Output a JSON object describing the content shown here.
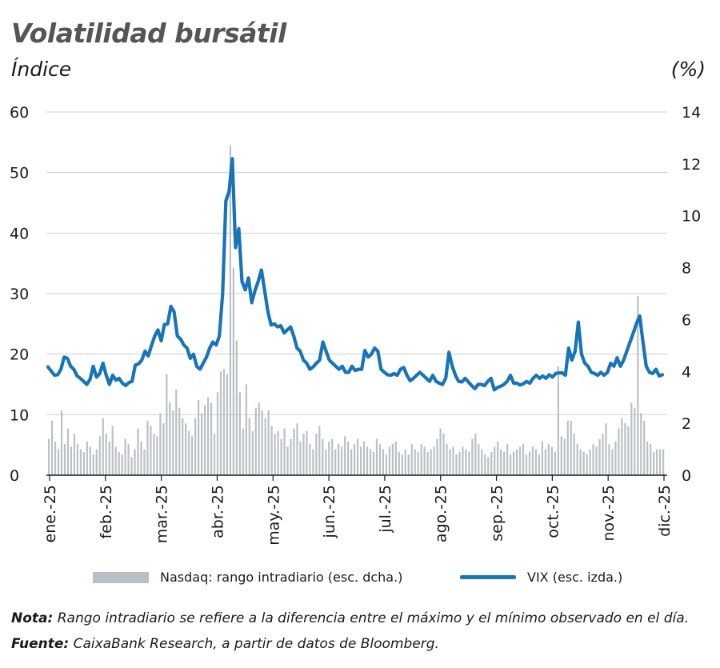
{
  "title": "Volatilidad bursátil",
  "left_unit": "Índice",
  "right_unit": "(%)",
  "legend": {
    "bars": "Nasdaq: rango intradiario (esc. dcha.)",
    "line": "VIX (esc. izda.)"
  },
  "note": {
    "label": "Nota:",
    "text": "Rango intradiario se refiere a la diferencia entre el máximo y el mínimo observado en el día."
  },
  "source": {
    "label": "Fuente:",
    "text": "CaixaBank Research, a partir de datos de Bloomberg."
  },
  "colors": {
    "vix": "#1674b8",
    "bars": "#b9c0c4",
    "grid": "#cfcfcf"
  },
  "chart_data": {
    "type": "bar+line",
    "x_labels": [
      "ene.-25",
      "feb.-25",
      "mar.-25",
      "abr.-25",
      "may.-25",
      "jun.-25",
      "jul.-25",
      "ago.-25",
      "sep.-25",
      "oct.-25",
      "nov.-25",
      "dic.-25"
    ],
    "left_axis": {
      "label": "Índice",
      "range": [
        0,
        60
      ],
      "ticks": [
        "0",
        "10",
        "20",
        "30",
        "40",
        "50",
        "60"
      ]
    },
    "right_axis": {
      "label": "(%)",
      "range": [
        0,
        14
      ],
      "ticks": [
        "0",
        "2",
        "4",
        "6",
        "8",
        "10",
        "12",
        "14"
      ]
    },
    "grid": "horizontal",
    "legend_position": "bottom",
    "series": [
      {
        "name": "VIX (esc. izda.)",
        "type": "line",
        "axis": "left",
        "points": [
          [
            0,
            17.9
          ],
          [
            1,
            17.2
          ],
          [
            2,
            16.5
          ],
          [
            3,
            16.6
          ],
          [
            4,
            17.5
          ],
          [
            5,
            19.5
          ],
          [
            6,
            19.3
          ],
          [
            7,
            18.0
          ],
          [
            8,
            17.5
          ],
          [
            9,
            16.4
          ],
          [
            10,
            16.0
          ],
          [
            11,
            15.5
          ],
          [
            12,
            15.0
          ],
          [
            13,
            15.8
          ],
          [
            14,
            18.0
          ],
          [
            15,
            16.2
          ],
          [
            16,
            16.8
          ],
          [
            17,
            18.5
          ],
          [
            18,
            16.5
          ],
          [
            19,
            15.0
          ],
          [
            20,
            16.5
          ],
          [
            21,
            15.7
          ],
          [
            22,
            16.0
          ],
          [
            23,
            15.2
          ],
          [
            24,
            14.8
          ],
          [
            25,
            15.3
          ],
          [
            26,
            15.5
          ],
          [
            27,
            18.2
          ],
          [
            28,
            18.4
          ],
          [
            29,
            19.0
          ],
          [
            30,
            20.5
          ],
          [
            31,
            19.7
          ],
          [
            32,
            21.4
          ],
          [
            33,
            23.0
          ],
          [
            34,
            24.0
          ],
          [
            35,
            22.2
          ],
          [
            36,
            24.9
          ],
          [
            37,
            25.0
          ],
          [
            38,
            27.9
          ],
          [
            39,
            27.0
          ],
          [
            40,
            23.0
          ],
          [
            41,
            22.5
          ],
          [
            42,
            21.5
          ],
          [
            43,
            21.0
          ],
          [
            44,
            19.3
          ],
          [
            45,
            20.0
          ],
          [
            46,
            18.0
          ],
          [
            47,
            17.5
          ],
          [
            48,
            18.5
          ],
          [
            49,
            19.5
          ],
          [
            50,
            21.0
          ],
          [
            51,
            22.0
          ],
          [
            52,
            21.5
          ],
          [
            53,
            23.0
          ],
          [
            54,
            30.0
          ],
          [
            55,
            45.3
          ],
          [
            56,
            46.9
          ],
          [
            57,
            52.3
          ],
          [
            58,
            37.6
          ],
          [
            59,
            40.7
          ],
          [
            60,
            32.0
          ],
          [
            61,
            30.6
          ],
          [
            62,
            32.6
          ],
          [
            63,
            28.5
          ],
          [
            64,
            30.5
          ],
          [
            65,
            32.0
          ],
          [
            66,
            33.9
          ],
          [
            67,
            30.5
          ],
          [
            68,
            27.0
          ],
          [
            69,
            24.8
          ],
          [
            70,
            25.0
          ],
          [
            71,
            24.5
          ],
          [
            72,
            24.7
          ],
          [
            73,
            23.5
          ],
          [
            74,
            24.0
          ],
          [
            75,
            24.5
          ],
          [
            76,
            23.0
          ],
          [
            77,
            21.0
          ],
          [
            78,
            20.5
          ],
          [
            79,
            19.0
          ],
          [
            80,
            18.5
          ],
          [
            81,
            17.5
          ],
          [
            82,
            17.9
          ],
          [
            83,
            18.5
          ],
          [
            84,
            19.0
          ],
          [
            85,
            22.0
          ],
          [
            86,
            20.5
          ],
          [
            87,
            19.0
          ],
          [
            88,
            18.5
          ],
          [
            89,
            18.0
          ],
          [
            90,
            17.5
          ],
          [
            91,
            18.0
          ],
          [
            92,
            17.0
          ],
          [
            93,
            17.0
          ],
          [
            94,
            18.0
          ],
          [
            95,
            17.3
          ],
          [
            96,
            17.5
          ],
          [
            97,
            17.5
          ],
          [
            98,
            20.6
          ],
          [
            99,
            19.5
          ],
          [
            100,
            20.0
          ],
          [
            101,
            21.0
          ],
          [
            102,
            20.5
          ],
          [
            103,
            17.5
          ],
          [
            104,
            17.0
          ],
          [
            105,
            16.6
          ],
          [
            106,
            16.5
          ],
          [
            107,
            16.8
          ],
          [
            108,
            16.5
          ],
          [
            109,
            17.5
          ],
          [
            110,
            17.8
          ],
          [
            111,
            16.5
          ],
          [
            112,
            15.6
          ],
          [
            113,
            16.0
          ],
          [
            114,
            16.5
          ],
          [
            115,
            17.0
          ],
          [
            116,
            16.5
          ],
          [
            117,
            16.0
          ],
          [
            118,
            15.5
          ],
          [
            119,
            16.5
          ],
          [
            120,
            15.5
          ],
          [
            121,
            15.2
          ],
          [
            122,
            15.0
          ],
          [
            123,
            16.0
          ],
          [
            124,
            20.3
          ],
          [
            125,
            18.0
          ],
          [
            126,
            16.5
          ],
          [
            127,
            15.5
          ],
          [
            128,
            15.4
          ],
          [
            129,
            16.0
          ],
          [
            130,
            15.4
          ],
          [
            131,
            14.8
          ],
          [
            132,
            14.3
          ],
          [
            133,
            15.0
          ],
          [
            134,
            15.0
          ],
          [
            135,
            14.8
          ],
          [
            136,
            15.5
          ],
          [
            137,
            16.0
          ],
          [
            138,
            14.1
          ],
          [
            139,
            14.5
          ],
          [
            140,
            14.7
          ],
          [
            141,
            15.0
          ],
          [
            142,
            15.5
          ],
          [
            143,
            16.5
          ],
          [
            144,
            15.2
          ],
          [
            145,
            15.2
          ],
          [
            146,
            14.9
          ],
          [
            147,
            15.1
          ],
          [
            148,
            15.5
          ],
          [
            149,
            15.2
          ],
          [
            150,
            16.0
          ],
          [
            151,
            16.5
          ],
          [
            152,
            16.0
          ],
          [
            153,
            16.4
          ],
          [
            154,
            16.0
          ],
          [
            155,
            16.6
          ],
          [
            156,
            16.2
          ],
          [
            157,
            16.8
          ],
          [
            158,
            16.9
          ],
          [
            159,
            16.9
          ],
          [
            160,
            16.5
          ],
          [
            161,
            21.0
          ],
          [
            162,
            19.0
          ],
          [
            163,
            20.5
          ],
          [
            164,
            25.3
          ],
          [
            165,
            20.0
          ],
          [
            166,
            18.5
          ],
          [
            167,
            18.0
          ],
          [
            168,
            17.0
          ],
          [
            169,
            16.8
          ],
          [
            170,
            16.5
          ],
          [
            171,
            17.0
          ],
          [
            172,
            16.5
          ],
          [
            173,
            17.0
          ],
          [
            174,
            18.5
          ],
          [
            175,
            18.0
          ],
          [
            176,
            19.4
          ],
          [
            177,
            18.0
          ],
          [
            178,
            19.0
          ],
          [
            179,
            20.5
          ],
          [
            180,
            22.0
          ],
          [
            181,
            23.5
          ],
          [
            182,
            25.1
          ],
          [
            183,
            26.3
          ],
          [
            184,
            22.0
          ],
          [
            185,
            18.0
          ],
          [
            186,
            17.0
          ],
          [
            187,
            16.8
          ],
          [
            188,
            17.5
          ],
          [
            189,
            16.4
          ],
          [
            190,
            16.6
          ]
        ],
        "x_max": 190
      },
      {
        "name": "Nasdaq: rango intradiario (esc. dcha.)",
        "type": "bar",
        "axis": "right",
        "values": [
          1.4,
          2.1,
          1.3,
          1.0,
          2.5,
          1.2,
          1.8,
          1.1,
          1.6,
          1.2,
          1.0,
          0.9,
          1.3,
          1.1,
          0.8,
          1.0,
          1.5,
          2.2,
          1.6,
          1.3,
          1.9,
          1.1,
          0.9,
          0.8,
          1.4,
          1.2,
          0.7,
          1.0,
          1.8,
          1.3,
          1.0,
          2.1,
          1.9,
          1.6,
          1.5,
          2.4,
          2.0,
          3.9,
          2.8,
          2.5,
          3.3,
          2.6,
          2.2,
          2.0,
          1.7,
          1.5,
          2.2,
          2.9,
          2.4,
          2.7,
          3.0,
          2.8,
          1.6,
          3.2,
          4.0,
          4.1,
          3.9,
          12.7,
          8.0,
          5.2,
          3.2,
          1.8,
          3.5,
          2.2,
          1.7,
          2.6,
          2.8,
          2.5,
          2.2,
          2.5,
          1.9,
          1.6,
          1.7,
          1.4,
          1.8,
          1.1,
          1.4,
          1.8,
          2.0,
          1.3,
          1.6,
          1.7,
          1.2,
          1.0,
          1.6,
          1.9,
          1.4,
          1.0,
          1.3,
          1.4,
          1.0,
          1.2,
          1.1,
          1.5,
          1.3,
          1.0,
          1.2,
          1.4,
          1.1,
          1.3,
          1.1,
          1.0,
          0.9,
          1.4,
          1.2,
          1.0,
          0.8,
          1.1,
          1.2,
          1.3,
          0.9,
          0.8,
          1.0,
          0.8,
          1.2,
          1.0,
          0.9,
          1.2,
          1.1,
          0.9,
          1.0,
          1.1,
          1.4,
          1.8,
          1.6,
          1.2,
          1.0,
          1.1,
          0.8,
          0.9,
          1.1,
          1.0,
          0.9,
          1.4,
          1.6,
          1.2,
          1.0,
          0.8,
          0.7,
          0.9,
          1.1,
          1.3,
          1.0,
          0.9,
          1.2,
          0.8,
          0.9,
          1.0,
          1.1,
          1.2,
          0.8,
          0.9,
          1.1,
          1.0,
          0.8,
          1.3,
          1.0,
          1.2,
          1.1,
          0.9,
          4.2,
          1.5,
          1.4,
          2.1,
          2.1,
          1.6,
          1.2,
          1.0,
          0.9,
          0.8,
          1.0,
          1.2,
          1.1,
          1.4,
          1.6,
          2.0,
          1.2,
          1.0,
          1.3,
          1.8,
          2.2,
          2.0,
          1.9,
          2.8,
          2.6,
          6.9,
          2.4,
          2.1,
          1.3,
          1.2,
          0.9,
          1.0,
          1.0,
          1.0
        ]
      }
    ]
  }
}
